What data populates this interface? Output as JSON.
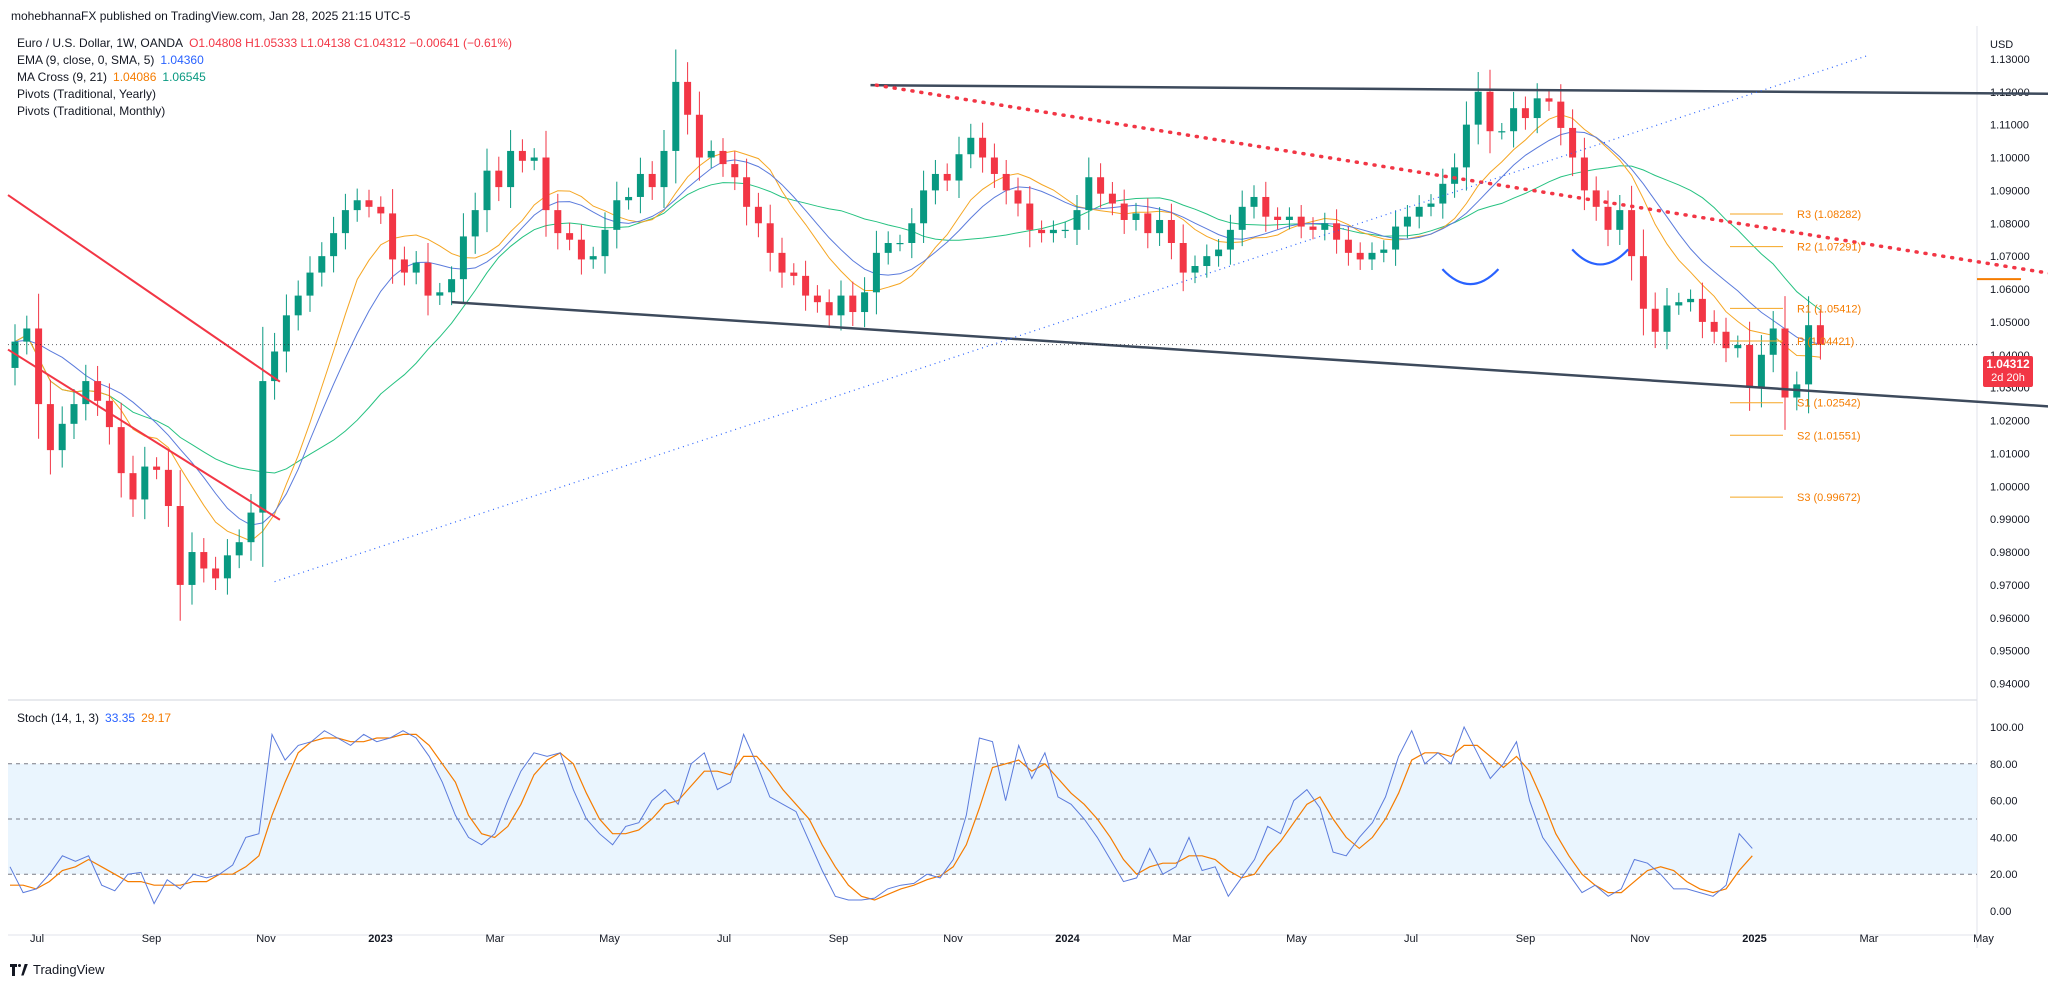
{
  "header": {
    "published": "mohebhannaFX published on TradingView.com, Jan 28, 2025 21:15 UTC-5"
  },
  "legend": {
    "symbol": "Euro / U.S. Dollar, 1W, OANDA",
    "ohlc": "O1.04808 H1.05333 L1.04138 C1.04312 −0.00641 (−0.61%)",
    "ema_label": "EMA (9, close, 0, SMA, 5)",
    "ema_value": "1.04360",
    "ma_label": "MA Cross (9, 21)",
    "ma_value1": "1.04086",
    "ma_value2": "1.06545",
    "pivots_yearly": "Pivots (Traditional, Yearly)",
    "pivots_monthly": "Pivots (Traditional, Monthly)"
  },
  "price_axis": {
    "currency": "USD",
    "current_price": "1.04312",
    "countdown": "2d 20h"
  },
  "stoch": {
    "label": "Stoch (14, 1, 3)",
    "k_value": "33.35",
    "d_value": "29.17"
  },
  "footer": {
    "brand": "TradingView"
  },
  "colors": {
    "up": "#089981",
    "down": "#f23645",
    "ema": "#5b7bdc",
    "ma_fast": "#f5a623",
    "ma_slow": "#26c281",
    "trend": "#3d4a5c",
    "stoch_k": "#5b7bdc",
    "stoch_d": "#f57c00"
  },
  "chart_data": [
    {
      "type": "candlestick",
      "name": "main",
      "symbol": "EURUSD",
      "timeframe": "1W",
      "ylim": [
        0.935,
        1.14
      ],
      "x_tick_labels": [
        "Jul",
        "Sep",
        "Nov",
        "2023",
        "Mar",
        "May",
        "Jul",
        "Sep",
        "Nov",
        "2024",
        "Mar",
        "May",
        "Jul",
        "Sep",
        "Nov",
        "2025",
        "Mar",
        "May"
      ],
      "y_ticks": [
        "1.13000",
        "1.12000",
        "1.11000",
        "1.10000",
        "1.09000",
        "1.08000",
        "1.07000",
        "1.06000",
        "1.05000",
        "1.04000",
        "1.03000",
        "1.02000",
        "1.01000",
        "1.00000",
        "0.99000",
        "0.98000",
        "0.97000",
        "0.96000",
        "0.95000",
        "0.94000"
      ],
      "y_tick_values": [
        1.13,
        1.12,
        1.11,
        1.1,
        1.09,
        1.08,
        1.07,
        1.06,
        1.05,
        1.04,
        1.03,
        1.02,
        1.01,
        1.0,
        0.99,
        0.98,
        0.97,
        0.96,
        0.95,
        0.94
      ],
      "closes": [
        1.044,
        1.048,
        1.025,
        1.011,
        1.019,
        1.025,
        1.032,
        1.026,
        1.018,
        1.004,
        0.996,
        1.006,
        1.005,
        0.994,
        0.97,
        0.98,
        0.975,
        0.972,
        0.979,
        0.983,
        0.992,
        1.032,
        1.041,
        1.052,
        1.058,
        1.065,
        1.07,
        1.077,
        1.084,
        1.087,
        1.085,
        1.083,
        1.069,
        1.065,
        1.068,
        1.058,
        1.059,
        1.063,
        1.076,
        1.084,
        1.096,
        1.091,
        1.102,
        1.099,
        1.1,
        1.084,
        1.077,
        1.075,
        1.069,
        1.07,
        1.078,
        1.087,
        1.088,
        1.095,
        1.091,
        1.102,
        1.123,
        1.113,
        1.1,
        1.102,
        1.098,
        1.094,
        1.085,
        1.08,
        1.071,
        1.065,
        1.064,
        1.058,
        1.056,
        1.052,
        1.058,
        1.053,
        1.059,
        1.071,
        1.074,
        1.074,
        1.08,
        1.09,
        1.095,
        1.093,
        1.101,
        1.106,
        1.1,
        1.095,
        1.09,
        1.086,
        1.078,
        1.077,
        1.078,
        1.078,
        1.084,
        1.094,
        1.089,
        1.086,
        1.081,
        1.083,
        1.077,
        1.081,
        1.074,
        1.065,
        1.067,
        1.07,
        1.072,
        1.078,
        1.085,
        1.088,
        1.082,
        1.081,
        1.082,
        1.079,
        1.078,
        1.08,
        1.075,
        1.071,
        1.069,
        1.071,
        1.072,
        1.079,
        1.082,
        1.085,
        1.086,
        1.092,
        1.097,
        1.11,
        1.12,
        1.108,
        1.108,
        1.115,
        1.112,
        1.118,
        1.117,
        1.109,
        1.1,
        1.09,
        1.085,
        1.078,
        1.084,
        1.07,
        1.054,
        1.047,
        1.055,
        1.056,
        1.057,
        1.05,
        1.047,
        1.042,
        1.043,
        1.03,
        1.04,
        1.048,
        1.027,
        1.031,
        1.049,
        1.0431
      ],
      "ema_9": 1.0436,
      "ma_fast_9": 1.04086,
      "ma_slow_21": 1.06545,
      "pivots_monthly": [
        {
          "name": "R3",
          "value": 1.08282
        },
        {
          "name": "R2",
          "value": 1.07291
        },
        {
          "name": "R1",
          "value": 1.05412
        },
        {
          "name": "P",
          "value": 1.04421
        },
        {
          "name": "S1",
          "value": 1.02542
        },
        {
          "name": "S2",
          "value": 1.01551
        },
        {
          "name": "S3",
          "value": 0.99672
        }
      ],
      "pivot_labels": [
        "R3 (1.08282)",
        "R2 (1.07291)",
        "R1 (1.05412)",
        "P (1.04421)",
        "S1 (1.02542)",
        "S2 (1.01551)",
        "S3 (0.99672)"
      ],
      "horizontal_level": 1.063,
      "annotations": [
        {
          "kind": "descending channel top",
          "from": [
            0,
            1.119
          ],
          "to": [
            176,
            1.082
          ]
        },
        {
          "kind": "descending channel bottom",
          "from": [
            0,
            1.072
          ],
          "to": [
            176,
            1.04
          ]
        },
        {
          "kind": "wedge top trendline",
          "from": [
            72.5,
            1.122
          ],
          "to": [
            187,
            1.119
          ]
        },
        {
          "kind": "wedge bottom trendline",
          "from": [
            37,
            1.056
          ],
          "to": [
            182,
            1.022
          ]
        },
        {
          "kind": "dotted resistance",
          "from": [
            73,
            1.122
          ],
          "to": [
            182,
            1.06
          ]
        },
        {
          "kind": "dotted support",
          "from": [
            22,
            0.971
          ],
          "to": [
            157,
            1.131
          ]
        },
        {
          "kind": "circle",
          "at": [
            175.5,
            1.0635
          ]
        },
        {
          "kind": "arc",
          "at": [
            123,
            1.063
          ]
        },
        {
          "kind": "arc",
          "at": [
            134,
            1.069
          ]
        }
      ]
    },
    {
      "type": "line",
      "name": "stochastic",
      "ylim": [
        0,
        100
      ],
      "y_ticks": [
        "100.00",
        "80.00",
        "60.00",
        "40.00",
        "20.00",
        "0.00"
      ],
      "y_tick_values": [
        100,
        80,
        60,
        40,
        20,
        0
      ],
      "bands": {
        "upper": 80,
        "middle": 50,
        "lower": 20
      },
      "series": [
        {
          "name": "%K",
          "values": [
            24,
            10,
            12,
            20,
            30,
            27,
            30,
            14,
            11,
            20,
            21,
            4,
            17,
            12,
            20,
            18,
            20,
            25,
            40,
            42,
            96,
            82,
            90,
            92,
            98,
            94,
            90,
            96,
            92,
            94,
            98,
            94,
            84,
            70,
            52,
            40,
            36,
            42,
            60,
            76,
            86,
            84,
            86,
            66,
            50,
            42,
            36,
            46,
            48,
            60,
            66,
            58,
            80,
            86,
            66,
            70,
            96,
            80,
            62,
            58,
            54,
            38,
            22,
            8,
            6,
            6,
            7,
            12,
            14,
            15,
            20,
            18,
            28,
            52,
            94,
            92,
            60,
            90,
            72,
            86,
            62,
            58,
            50,
            40,
            28,
            16,
            18,
            34,
            20,
            24,
            40,
            22,
            24,
            8,
            18,
            28,
            46,
            42,
            60,
            66,
            56,
            32,
            30,
            40,
            48,
            62,
            84,
            98,
            80,
            86,
            80,
            100,
            86,
            72,
            80,
            92,
            60,
            40,
            30,
            20,
            10,
            14,
            8,
            12,
            28,
            26,
            20,
            12,
            12,
            10,
            8,
            14,
            42,
            34
          ]
        },
        {
          "name": "%D",
          "values": [
            14,
            14,
            12,
            16,
            22,
            24,
            28,
            24,
            20,
            16,
            16,
            14,
            14,
            14,
            16,
            16,
            20,
            20,
            24,
            30,
            52,
            70,
            86,
            92,
            94,
            94,
            92,
            92,
            94,
            94,
            96,
            96,
            90,
            80,
            70,
            52,
            42,
            40,
            46,
            58,
            74,
            82,
            86,
            80,
            64,
            50,
            42,
            42,
            44,
            50,
            58,
            60,
            68,
            76,
            76,
            74,
            84,
            84,
            76,
            66,
            58,
            50,
            36,
            24,
            14,
            8,
            6,
            9,
            12,
            14,
            17,
            19,
            24,
            36,
            56,
            78,
            80,
            82,
            76,
            80,
            72,
            64,
            58,
            50,
            40,
            28,
            20,
            24,
            26,
            26,
            30,
            30,
            28,
            22,
            18,
            20,
            30,
            38,
            48,
            58,
            62,
            50,
            40,
            34,
            40,
            50,
            64,
            82,
            86,
            86,
            84,
            90,
            90,
            84,
            78,
            84,
            76,
            60,
            42,
            30,
            20,
            14,
            10,
            10,
            16,
            22,
            24,
            22,
            16,
            12,
            10,
            12,
            22,
            30
          ]
        }
      ]
    }
  ]
}
